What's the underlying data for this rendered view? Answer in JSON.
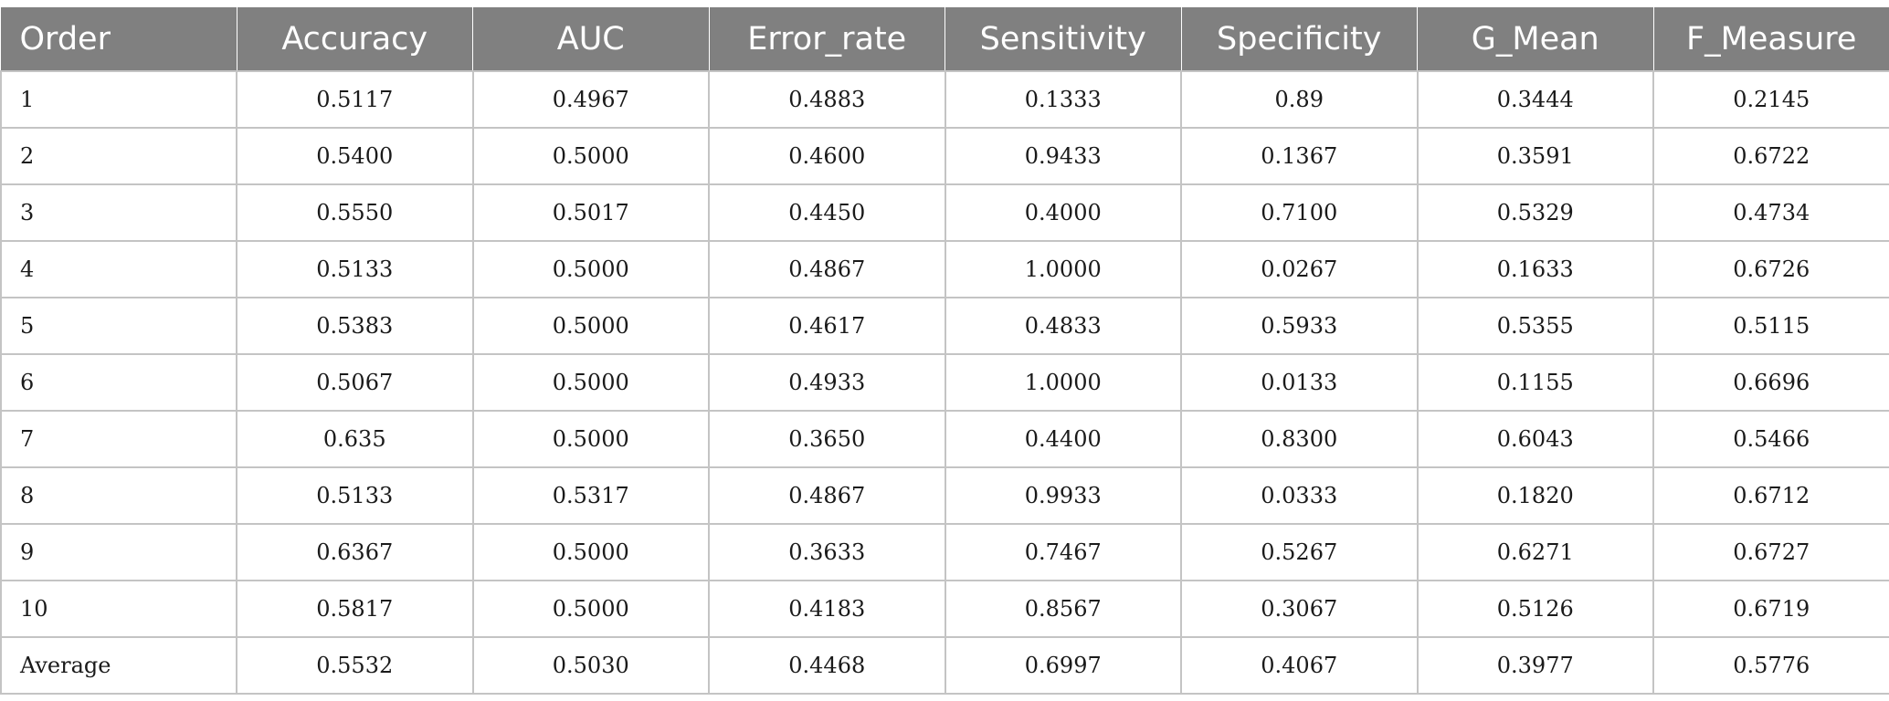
{
  "table": {
    "headers": [
      "Order",
      "Accuracy",
      "AUC",
      "Error_rate",
      "Sensitivity",
      "Specificity",
      "G_Mean",
      "F_Measure"
    ],
    "rows": [
      [
        "1",
        "0.5117",
        "0.4967",
        "0.4883",
        "0.1333",
        "0.89",
        "0.3444",
        "0.2145"
      ],
      [
        "2",
        "0.5400",
        "0.5000",
        "0.4600",
        "0.9433",
        "0.1367",
        "0.3591",
        "0.6722"
      ],
      [
        "3",
        "0.5550",
        "0.5017",
        "0.4450",
        "0.4000",
        "0.7100",
        "0.5329",
        "0.4734"
      ],
      [
        "4",
        "0.5133",
        "0.5000",
        "0.4867",
        "1.0000",
        "0.0267",
        "0.1633",
        "0.6726"
      ],
      [
        "5",
        "0.5383",
        "0.5000",
        "0.4617",
        "0.4833",
        "0.5933",
        "0.5355",
        "0.5115"
      ],
      [
        "6",
        "0.5067",
        "0.5000",
        "0.4933",
        "1.0000",
        "0.0133",
        "0.1155",
        "0.6696"
      ],
      [
        "7",
        "0.635",
        "0.5000",
        "0.3650",
        "0.4400",
        "0.8300",
        "0.6043",
        "0.5466"
      ],
      [
        "8",
        "0.5133",
        "0.5317",
        "0.4867",
        "0.9933",
        "0.0333",
        "0.1820",
        "0.6712"
      ],
      [
        "9",
        "0.6367",
        "0.5000",
        "0.3633",
        "0.7467",
        "0.5267",
        "0.6271",
        "0.6727"
      ],
      [
        "10",
        "0.5817",
        "0.5000",
        "0.4183",
        "0.8567",
        "0.3067",
        "0.5126",
        "0.6719"
      ],
      [
        "Average",
        "0.5532",
        "0.5030",
        "0.4468",
        "0.6997",
        "0.4067",
        "0.3977",
        "0.5776"
      ]
    ]
  },
  "colors": {
    "header_background": "#808080",
    "header_text": "#ffffff",
    "grid_line": "#c4c4c4",
    "body_text": "#1a1a1a"
  }
}
